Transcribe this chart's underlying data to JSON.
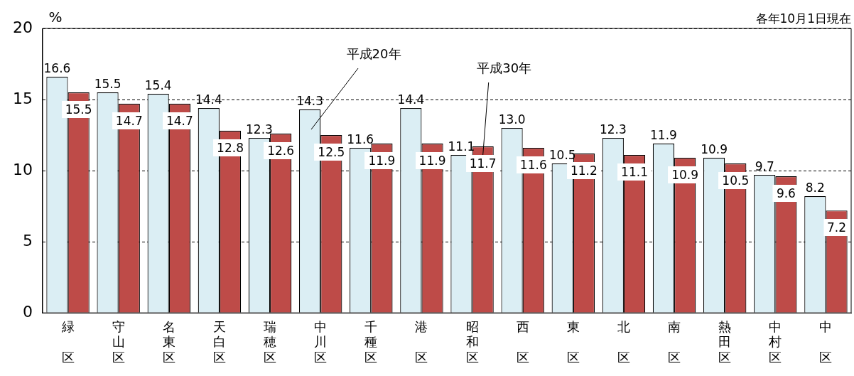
{
  "chart_data": {
    "type": "bar",
    "ylabel": "%",
    "annotations": [
      "各年10月1日現在"
    ],
    "categories": [
      "緑区",
      "守山区",
      "名東区",
      "天白区",
      "瑞穂区",
      "中川区",
      "千種区",
      "港区",
      "昭和区",
      "西区",
      "東区",
      "北区",
      "南区",
      "熱田区",
      "中村区",
      "中区"
    ],
    "series": [
      {
        "name": "平成20年",
        "color": "#dbeef4",
        "values": [
          16.6,
          15.5,
          15.4,
          14.4,
          12.3,
          14.3,
          11.6,
          14.4,
          11.1,
          13.0,
          10.5,
          12.3,
          11.9,
          10.9,
          9.7,
          8.2
        ],
        "value_labels": [
          "16.6",
          "15.5",
          "15.4",
          "14.4",
          "12.3",
          "14.3",
          "11.6",
          "14.4",
          "11.1",
          "13.0",
          "10.5",
          "12.3",
          "11.9",
          "10.9",
          "9.7",
          "8.2"
        ]
      },
      {
        "name": "平成30年",
        "color": "#be4b48",
        "values": [
          15.5,
          14.7,
          14.7,
          12.8,
          12.6,
          12.5,
          11.9,
          11.9,
          11.7,
          11.6,
          11.2,
          11.1,
          10.9,
          10.5,
          9.6,
          7.2
        ],
        "value_labels": [
          "15.5",
          "14.7",
          "14.7",
          "12.8",
          "12.6",
          "12.5",
          "11.9",
          "11.9",
          "11.7",
          "11.6",
          "11.2",
          "11.1",
          "10.9",
          "10.5",
          "9.6",
          "7.2"
        ]
      }
    ],
    "ylim": [
      0,
      20
    ],
    "yticks": [
      0,
      5,
      10,
      15,
      20
    ],
    "grid": "y",
    "line_style": "dashed",
    "legend": false
  }
}
